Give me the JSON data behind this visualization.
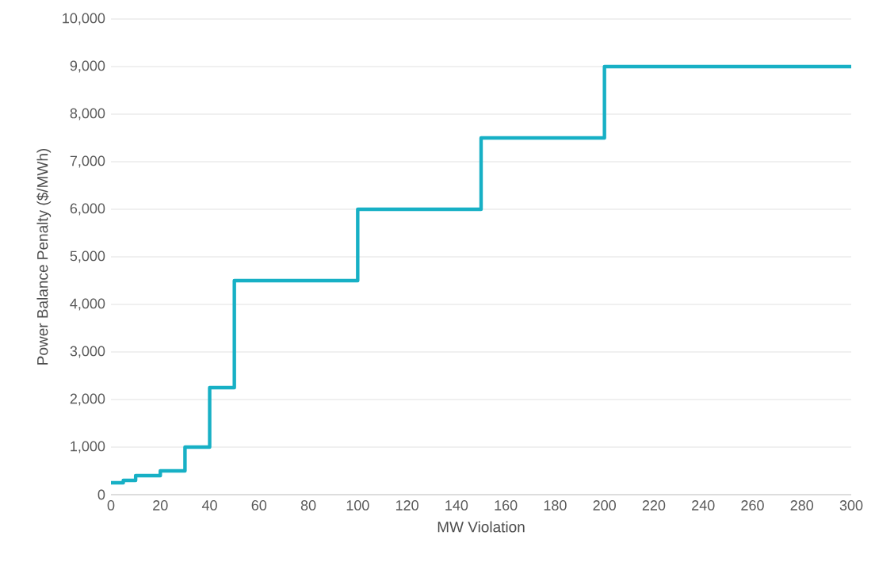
{
  "chart_data": {
    "type": "step",
    "xlabel": "MW Violation",
    "ylabel": "Power Balance Penalty ($/MWh)",
    "x": [
      0,
      5,
      10,
      20,
      30,
      40,
      50,
      100,
      150,
      200,
      300
    ],
    "series": [
      {
        "color": "#17b0c5",
        "values": [
          250,
          300,
          400,
          500,
          1000,
          2250,
          4500,
          6000,
          7500,
          9000,
          9000
        ]
      }
    ],
    "xlim": [
      0,
      300
    ],
    "xticks": [
      0,
      20,
      40,
      60,
      80,
      100,
      120,
      140,
      160,
      180,
      200,
      220,
      240,
      260,
      280,
      300
    ],
    "ylim": [
      0,
      10000
    ],
    "yticks": [
      0,
      {
        "value": 1000,
        "label": "1,000"
      },
      {
        "value": 2000,
        "label": "2,000"
      },
      {
        "value": 3000,
        "label": "3,000"
      },
      {
        "value": 4000,
        "label": "4,000"
      },
      {
        "value": 5000,
        "label": "5,000"
      },
      {
        "value": 6000,
        "label": "6,000"
      },
      {
        "value": 7000,
        "label": "7,000"
      },
      {
        "value": 8000,
        "label": "8,000"
      },
      {
        "value": 9000,
        "label": "9,000"
      },
      {
        "value": 10000,
        "label": "10,000"
      }
    ],
    "grid": "y",
    "line_style": "solid",
    "marker": "none"
  }
}
